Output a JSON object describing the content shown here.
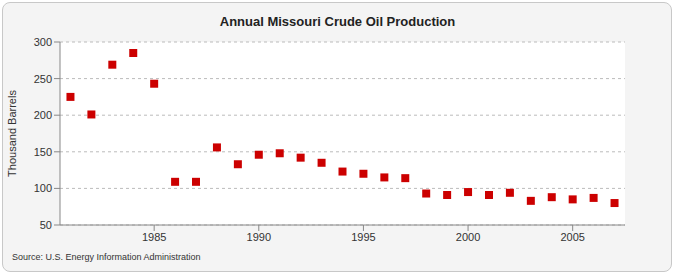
{
  "chart_data": {
    "type": "scatter",
    "title": "Annual Missouri Crude Oil Production",
    "y_label": "Thousand Barrels",
    "source": "Source: U.S. Energy Information Administration",
    "x": [
      1981,
      1982,
      1983,
      1984,
      1985,
      1986,
      1987,
      1988,
      1989,
      1990,
      1991,
      1992,
      1993,
      1994,
      1995,
      1996,
      1997,
      1998,
      1999,
      2000,
      2001,
      2002,
      2003,
      2004,
      2005,
      2006,
      2007
    ],
    "values": [
      225,
      201,
      269,
      285,
      243,
      109,
      109,
      156,
      133,
      146,
      148,
      142,
      135,
      123,
      120,
      115,
      114,
      93,
      91,
      95,
      91,
      94,
      83,
      88,
      85,
      87,
      80
    ],
    "color": "#cc0000",
    "marker": "square",
    "xlim": [
      1980.5,
      2007.5
    ],
    "xticks": [
      1985,
      1990,
      1995,
      2000,
      2005
    ],
    "ylim": [
      50,
      300
    ],
    "yticks": [
      50,
      100,
      150,
      200,
      250,
      300
    ],
    "grid": true
  }
}
